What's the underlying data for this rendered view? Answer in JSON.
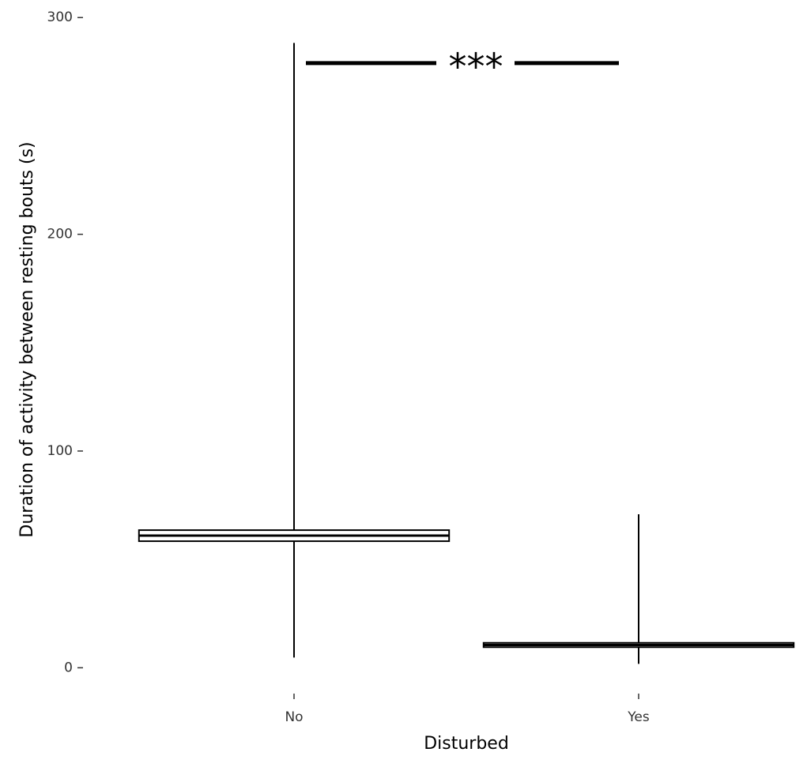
{
  "chart_data": {
    "type": "box",
    "x_label": "Disturbed",
    "y_label": "Duration of activity between resting bouts (s)",
    "categories": [
      "No",
      "Yes"
    ],
    "boxes": [
      {
        "low": 4.7,
        "q1": 58.4,
        "median": 61,
        "q3": 63.5,
        "high": 288.3
      },
      {
        "low": 1.8,
        "q1": 9.5,
        "median": 10.5,
        "q3": 11.5,
        "high": 70.8
      }
    ],
    "color": "#000000",
    "ylim": [
      -9,
      303
    ],
    "yticks": [
      0,
      100,
      200,
      300
    ],
    "annotation": {
      "text": "***",
      "y": 279
    }
  }
}
